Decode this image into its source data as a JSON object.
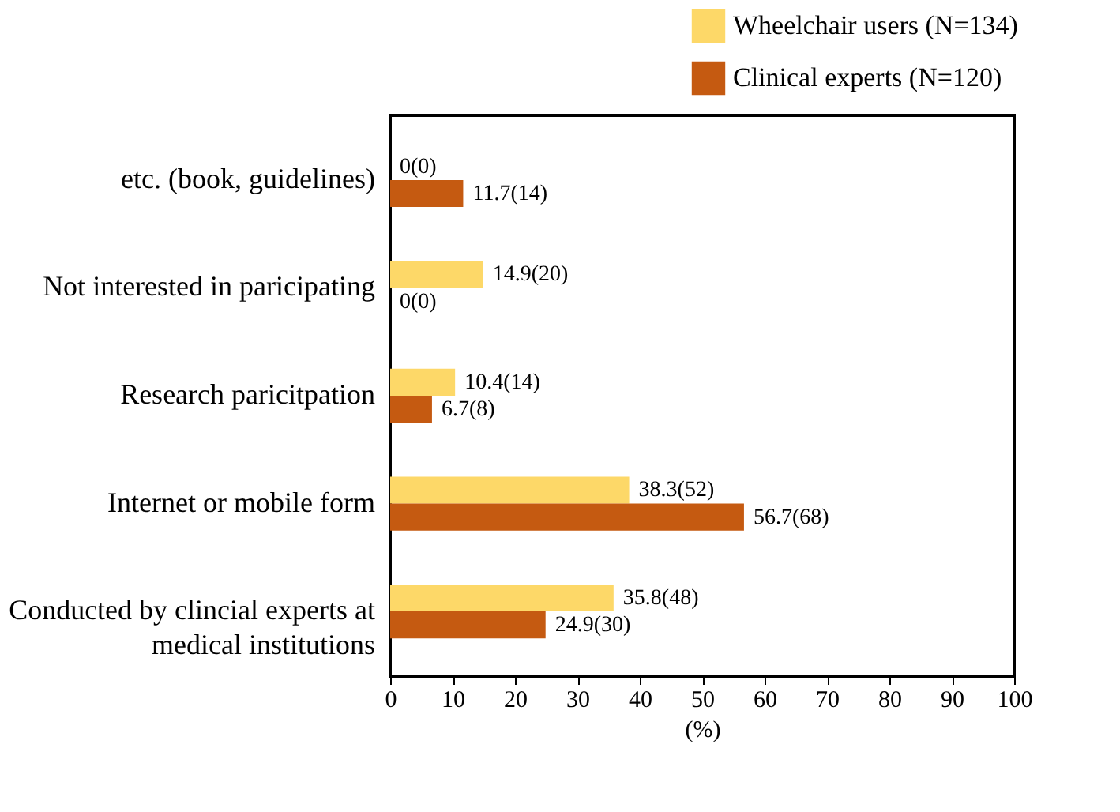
{
  "chart_data": {
    "type": "bar",
    "orientation": "horizontal",
    "xlabel": "(%)",
    "categories": [
      "etc. (book, guidelines)",
      "Not interested in paricipating",
      "Research paricitpation",
      "Internet or mobile form",
      "Conducted by clincial experts at medical institutions"
    ],
    "series": [
      {
        "name": "Wheelchair users (N=134)",
        "color": "#fdd868",
        "values": [
          0,
          14.9,
          10.4,
          38.3,
          35.8
        ],
        "value_labels": [
          "0(0)",
          "14.9(20)",
          "10.4(14)",
          "38.3(52)",
          "35.8(48)"
        ]
      },
      {
        "name": "Clinical experts (N=120)",
        "color": "#c55a11",
        "values": [
          11.7,
          0,
          6.7,
          56.7,
          24.9
        ],
        "value_labels": [
          "11.7(14)",
          "0(0)",
          "6.7(8)",
          "56.7(68)",
          "24.9(30)"
        ]
      }
    ],
    "xlim": [
      0,
      100
    ],
    "xticks": [
      0,
      10,
      20,
      30,
      40,
      50,
      60,
      70,
      80,
      90,
      100
    ],
    "grid": false,
    "legend": "top right"
  }
}
